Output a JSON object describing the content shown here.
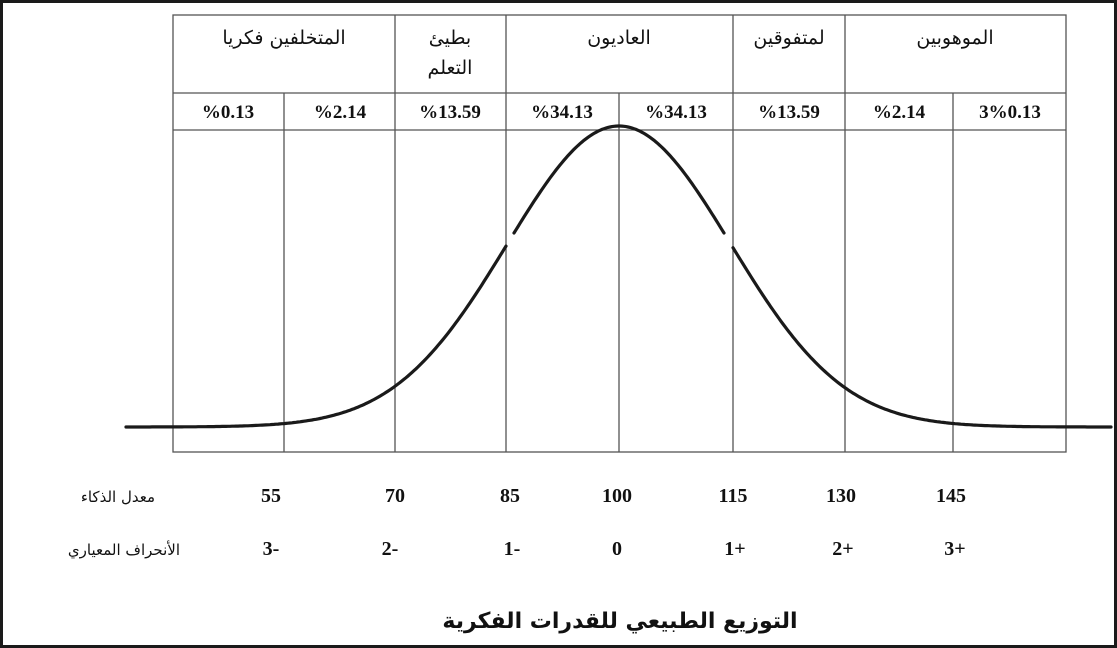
{
  "categories": [
    {
      "label_lines": [
        "المتخلفين فكريا"
      ]
    },
    {
      "label_lines": [
        "بطيئ",
        "التعلم"
      ]
    },
    {
      "label_lines": [
        "العاديون"
      ]
    },
    {
      "label_lines": [
        "لمتفوقين"
      ]
    },
    {
      "label_lines": [
        "الموهوبين"
      ]
    }
  ],
  "percentages": [
    "%0.13",
    "%2.14",
    "%13.59",
    "%34.13",
    "%34.13",
    "%13.59",
    "%2.14",
    "3%0.13"
  ],
  "iq_label": "معدل الذكاء",
  "iq_values": [
    "55",
    "70",
    "85",
    "100",
    "115",
    "130",
    "145"
  ],
  "sd_label": "الأنحراف المعياري",
  "sd_values": [
    "3-",
    "2-",
    "1-",
    "0",
    "1+",
    "2+",
    "3+"
  ],
  "title": "التوزيع الطبيعي للقدرات الفكرية",
  "chart_data": {
    "type": "line",
    "distribution": "normal",
    "mean": 100,
    "sd": 15,
    "x": [
      "55",
      "70",
      "85",
      "100",
      "115",
      "130",
      "145"
    ],
    "x_sd": [
      "3-",
      "2-",
      "1-",
      "0",
      "1+",
      "2+",
      "3+"
    ],
    "band_percentages": [
      0.13,
      2.14,
      13.59,
      34.13,
      34.13,
      13.59,
      2.14,
      0.13
    ],
    "xlabel": "معدل الذكاء",
    "title": "التوزيع الطبيعي للقدرات الفكرية"
  },
  "colors": {
    "line": "#1a1a1a",
    "grid": "#555555",
    "border": "#1a1a1a"
  }
}
